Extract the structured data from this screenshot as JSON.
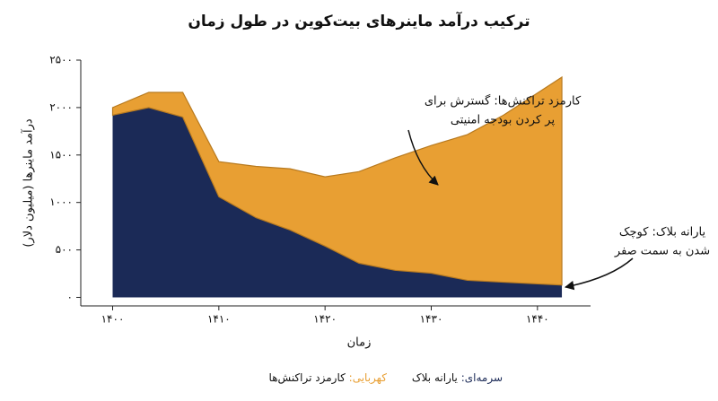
{
  "chart_data": {
    "type": "stacked-area",
    "title": "ترکیب درآمد ماینرهای بیت‌کوین در طول زمان",
    "x_label": "زمان",
    "y_label": "درآمد ماینرها (میلیون دلار)",
    "x": [
      1400,
      1403.4,
      1406.6,
      1410,
      1413.5,
      1416.7,
      1420,
      1423.2,
      1426.6,
      1430,
      1433.4,
      1436.8,
      1442.3
    ],
    "series": [
      {
        "name": "یارانه بلاک",
        "legend_prefix": "سرمه‌ای:",
        "color": "#1b2a57",
        "prefix_color": "#1b2a57",
        "values": [
          1920,
          2000,
          1900,
          1060,
          840,
          710,
          540,
          360,
          285,
          255,
          180,
          160,
          130
        ]
      },
      {
        "name": "کارمزد تراکنش‌ها",
        "legend_prefix": "کهربایی:",
        "color": "#e89f33",
        "prefix_color": "#e89f33",
        "values": [
          80,
          160,
          260,
          370,
          540,
          645,
          730,
          965,
          1185,
          1345,
          1535,
          1760,
          2190
        ]
      }
    ],
    "xlim": [
      1397,
      1445
    ],
    "ylim": [
      -90,
      2500
    ],
    "xticks": [
      {
        "value": 1400,
        "label": "۱۴۰۰"
      },
      {
        "value": 1410,
        "label": "۱۴۱۰"
      },
      {
        "value": 1420,
        "label": "۱۴۲۰"
      },
      {
        "value": 1430,
        "label": "۱۴۳۰"
      },
      {
        "value": 1440,
        "label": "۱۴۴۰"
      }
    ],
    "yticks": [
      {
        "value": 0,
        "label": "۰"
      },
      {
        "value": 500,
        "label": "۵۰۰"
      },
      {
        "value": 1000,
        "label": "۱۰۰۰"
      },
      {
        "value": 1500,
        "label": "۱۵۰۰"
      },
      {
        "value": 2000,
        "label": "۲۰۰۰"
      },
      {
        "value": 2500,
        "label": "۲۵۰۰"
      }
    ],
    "annotations": [
      {
        "lines": [
          "کارمزد تراکنش‌ها: گسترش برای",
          "پر کردن بودجه امنیتی"
        ]
      },
      {
        "lines": [
          "یارانه بلاک: کوچک",
          "شدن به سمت صفر"
        ]
      }
    ]
  }
}
